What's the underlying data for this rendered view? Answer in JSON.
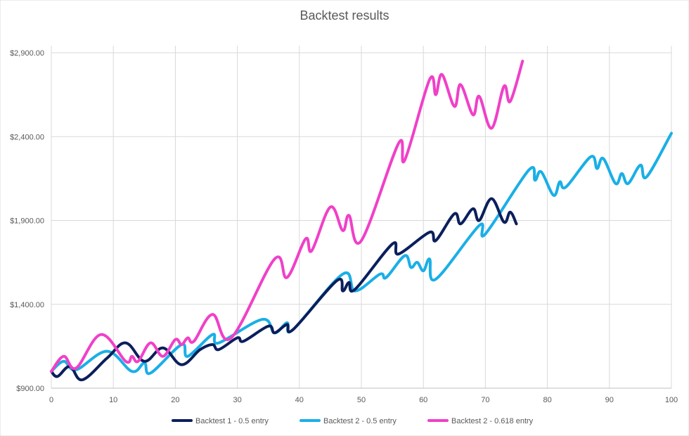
{
  "chart_data": {
    "type": "line",
    "title": "Backtest results",
    "xlabel": "",
    "ylabel": "",
    "xlim": [
      0,
      100
    ],
    "ylim": [
      900,
      3000
    ],
    "x_ticks": [
      "0",
      "10",
      "20",
      "30",
      "40",
      "50",
      "60",
      "70",
      "80",
      "90",
      "100"
    ],
    "y_ticks": [
      "$900.00",
      "$1,400.00",
      "$1,900.00",
      "$2,400.00",
      "$2,900.00"
    ],
    "grid": "vertical and horizontal",
    "legend_position": "bottom",
    "colors": {
      "axis": "#bfbfbf",
      "grid": "#d9d9d9",
      "text": "#595959"
    },
    "series": [
      {
        "name": "Backtest 1 - 0.5 entry",
        "color": "#0b1f5c",
        "points": [
          [
            0,
            1000
          ],
          [
            1,
            970
          ],
          [
            3,
            1030
          ],
          [
            5,
            950
          ],
          [
            9,
            1080
          ],
          [
            12,
            1170
          ],
          [
            15,
            1060
          ],
          [
            18,
            1140
          ],
          [
            21,
            1040
          ],
          [
            24,
            1130
          ],
          [
            26,
            1160
          ],
          [
            27,
            1130
          ],
          [
            30,
            1200
          ],
          [
            31,
            1180
          ],
          [
            35,
            1270
          ],
          [
            36,
            1230
          ],
          [
            38,
            1280
          ],
          [
            39,
            1250
          ],
          [
            46,
            1540
          ],
          [
            47,
            1480
          ],
          [
            48,
            1530
          ],
          [
            49,
            1490
          ],
          [
            55,
            1760
          ],
          [
            56,
            1700
          ],
          [
            61,
            1830
          ],
          [
            62,
            1780
          ],
          [
            65,
            1940
          ],
          [
            66,
            1880
          ],
          [
            68,
            1970
          ],
          [
            69,
            1900
          ],
          [
            71,
            2030
          ],
          [
            73,
            1890
          ],
          [
            74,
            1950
          ],
          [
            75,
            1880
          ]
        ]
      },
      {
        "name": "Backtest 2 - 0.5 entry",
        "color": "#1aafe6",
        "points": [
          [
            0,
            1000
          ],
          [
            2,
            1060
          ],
          [
            4,
            1010
          ],
          [
            9,
            1120
          ],
          [
            13,
            1000
          ],
          [
            15,
            1050
          ],
          [
            16,
            990
          ],
          [
            21,
            1160
          ],
          [
            22,
            1090
          ],
          [
            26,
            1220
          ],
          [
            27,
            1170
          ],
          [
            34,
            1310
          ],
          [
            36,
            1230
          ],
          [
            38,
            1290
          ],
          [
            39,
            1250
          ],
          [
            47,
            1580
          ],
          [
            49,
            1480
          ],
          [
            53,
            1580
          ],
          [
            54,
            1560
          ],
          [
            57,
            1690
          ],
          [
            58,
            1620
          ],
          [
            59,
            1650
          ],
          [
            60,
            1600
          ],
          [
            61,
            1670
          ],
          [
            62,
            1550
          ],
          [
            69,
            1870
          ],
          [
            70,
            1820
          ],
          [
            77,
            2200
          ],
          [
            78,
            2140
          ],
          [
            79,
            2190
          ],
          [
            81,
            2050
          ],
          [
            82,
            2130
          ],
          [
            83,
            2100
          ],
          [
            87,
            2280
          ],
          [
            88,
            2210
          ],
          [
            89,
            2270
          ],
          [
            91,
            2120
          ],
          [
            92,
            2180
          ],
          [
            93,
            2120
          ],
          [
            95,
            2230
          ],
          [
            96,
            2160
          ],
          [
            100,
            2420
          ]
        ]
      },
      {
        "name": "Backtest 2 - 0.618 entry",
        "color": "#f040c8",
        "points": [
          [
            0,
            1000
          ],
          [
            2,
            1090
          ],
          [
            4,
            1020
          ],
          [
            8,
            1220
          ],
          [
            12,
            1060
          ],
          [
            13,
            1090
          ],
          [
            14,
            1060
          ],
          [
            16,
            1170
          ],
          [
            18,
            1090
          ],
          [
            20,
            1190
          ],
          [
            21,
            1160
          ],
          [
            22,
            1200
          ],
          [
            23,
            1180
          ],
          [
            26,
            1340
          ],
          [
            29,
            1200
          ],
          [
            36,
            1670
          ],
          [
            38,
            1560
          ],
          [
            41,
            1790
          ],
          [
            42,
            1720
          ],
          [
            45,
            1980
          ],
          [
            47,
            1840
          ],
          [
            48,
            1930
          ],
          [
            50,
            1780
          ],
          [
            56,
            2360
          ],
          [
            57,
            2260
          ],
          [
            61,
            2740
          ],
          [
            62,
            2650
          ],
          [
            63,
            2770
          ],
          [
            65,
            2580
          ],
          [
            66,
            2710
          ],
          [
            68,
            2530
          ],
          [
            69,
            2640
          ],
          [
            71,
            2450
          ],
          [
            73,
            2700
          ],
          [
            74,
            2610
          ],
          [
            76,
            2850
          ]
        ]
      }
    ]
  }
}
